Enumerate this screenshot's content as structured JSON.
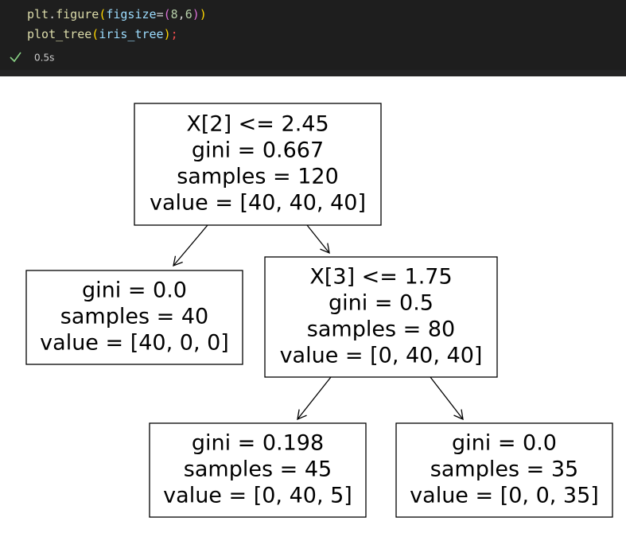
{
  "cell": {
    "code": [
      [
        {
          "text": "plt",
          "color": "#dcdcaa"
        },
        {
          "text": ".",
          "color": "#d4d4d4"
        },
        {
          "text": "figure",
          "color": "#dcdcaa"
        },
        {
          "text": "(",
          "color": "#ffd700"
        },
        {
          "text": "figsize",
          "color": "#9cdcfe"
        },
        {
          "text": "=",
          "color": "#d4d4d4"
        },
        {
          "text": "(",
          "color": "#da70d6"
        },
        {
          "text": "8",
          "color": "#b5cea8"
        },
        {
          "text": ",",
          "color": "#d4d4d4"
        },
        {
          "text": "6",
          "color": "#b5cea8"
        },
        {
          "text": ")",
          "color": "#da70d6"
        },
        {
          "text": ")",
          "color": "#ffd700"
        }
      ],
      [
        {
          "text": "plot_tree",
          "color": "#dcdcaa"
        },
        {
          "text": "(",
          "color": "#ffd700"
        },
        {
          "text": "iris_tree",
          "color": "#9cdcfe"
        },
        {
          "text": ")",
          "color": "#ffd700"
        },
        {
          "text": ";",
          "color": "#f14c4c"
        }
      ]
    ],
    "status": "0.5s"
  },
  "tree": {
    "nodes": [
      {
        "lines": [
          "X[2] <= 2.45",
          "gini = 0.667",
          "samples = 120",
          "value = [40, 40, 40]"
        ]
      },
      {
        "lines": [
          "gini = 0.0",
          "samples = 40",
          "value = [40, 0, 0]"
        ]
      },
      {
        "lines": [
          "X[3] <= 1.75",
          "gini = 0.5",
          "samples = 80",
          "value = [0, 40, 40]"
        ]
      },
      {
        "lines": [
          "gini = 0.198",
          "samples = 45",
          "value = [0, 40, 5]"
        ]
      },
      {
        "lines": [
          "gini = 0.0",
          "samples = 35",
          "value = [0, 0, 35]"
        ]
      }
    ]
  }
}
